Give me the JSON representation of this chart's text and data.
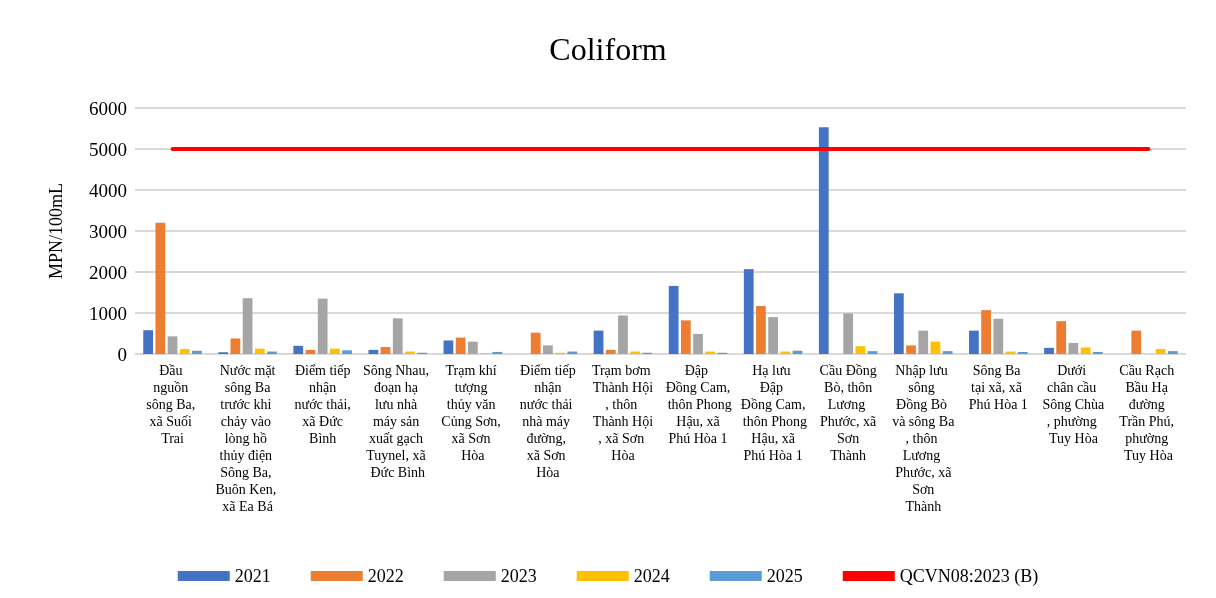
{
  "chart_data": {
    "type": "bar",
    "title": "Coliform",
    "ylabel": "MPN/100mL",
    "categories": [
      "Đầu nguồn sông Ba, xã Suối Trai",
      "Nước mặt sông Ba trước khi chảy vào lòng hồ thủy điện Sông Ba, Buôn Ken, xã Ea Bá",
      "Điểm tiếp nhận nước thải, xã Đức Bình",
      "Sông Nhau, đoạn hạ lưu nhà máy sản xuất gạch Tuynel, xã Đức Bình",
      "Trạm khí tượng thủy văn Củng Sơn, xã Sơn Hòa",
      "Điểm tiếp nhận nước thải nhà máy đường, xã Sơn Hòa",
      "Trạm bơm Thành Hội, thôn Thành Hội, xã Sơn Hòa",
      "Đập Đồng Cam, thôn Phong Hậu, xã Phú Hòa 1",
      "Hạ lưu Đập Đồng Cam, thôn Phong Hậu, xã Phú Hòa 1",
      "Cầu Đồng Bò, thôn Lương Phước, xã Sơn Thành",
      "Nhập lưu sông Đồng Bò và sông Ba, thôn Lương Phước, xã Sơn Thành",
      "Sông Ba tại xã, xã Phú Hòa 1",
      "Dưới chân cầu Sông Chùa, phường Tuy Hòa",
      "Cầu Rạch Bầu Hạ đường Trần Phú, phường Tuy Hòa"
    ],
    "series": [
      {
        "name": "2021",
        "color": "#4472c4",
        "values": [
          580,
          40,
          200,
          100,
          330,
          null,
          570,
          1660,
          2070,
          5530,
          1480,
          570,
          150,
          null
        ]
      },
      {
        "name": "2022",
        "color": "#ed7d31",
        "values": [
          3200,
          380,
          100,
          170,
          400,
          520,
          100,
          820,
          1170,
          null,
          210,
          1070,
          800,
          570
        ]
      },
      {
        "name": "2023",
        "color": "#a5a5a5",
        "values": [
          430,
          1360,
          1350,
          870,
          300,
          210,
          940,
          490,
          900,
          990,
          570,
          860,
          270,
          null
        ]
      },
      {
        "name": "2024",
        "color": "#ffc000",
        "values": [
          120,
          130,
          130,
          60,
          20,
          30,
          60,
          60,
          60,
          190,
          300,
          60,
          160,
          120
        ]
      },
      {
        "name": "2025",
        "color": "#5b9bd5",
        "values": [
          80,
          60,
          90,
          30,
          50,
          60,
          30,
          30,
          80,
          70,
          70,
          50,
          50,
          70
        ]
      },
      {
        "name": "QCVN08:2023 (B)",
        "type": "line",
        "color": "#ff0000",
        "values": [
          5000,
          5000,
          5000,
          5000,
          5000,
          5000,
          5000,
          5000,
          5000,
          5000,
          5000,
          5000,
          5000,
          5000
        ]
      }
    ],
    "ylim": [
      0,
      6000
    ],
    "yticks": [
      0,
      1000,
      2000,
      3000,
      4000,
      5000,
      6000
    ],
    "grid": "y",
    "legend": "bottom",
    "marker": "none"
  }
}
